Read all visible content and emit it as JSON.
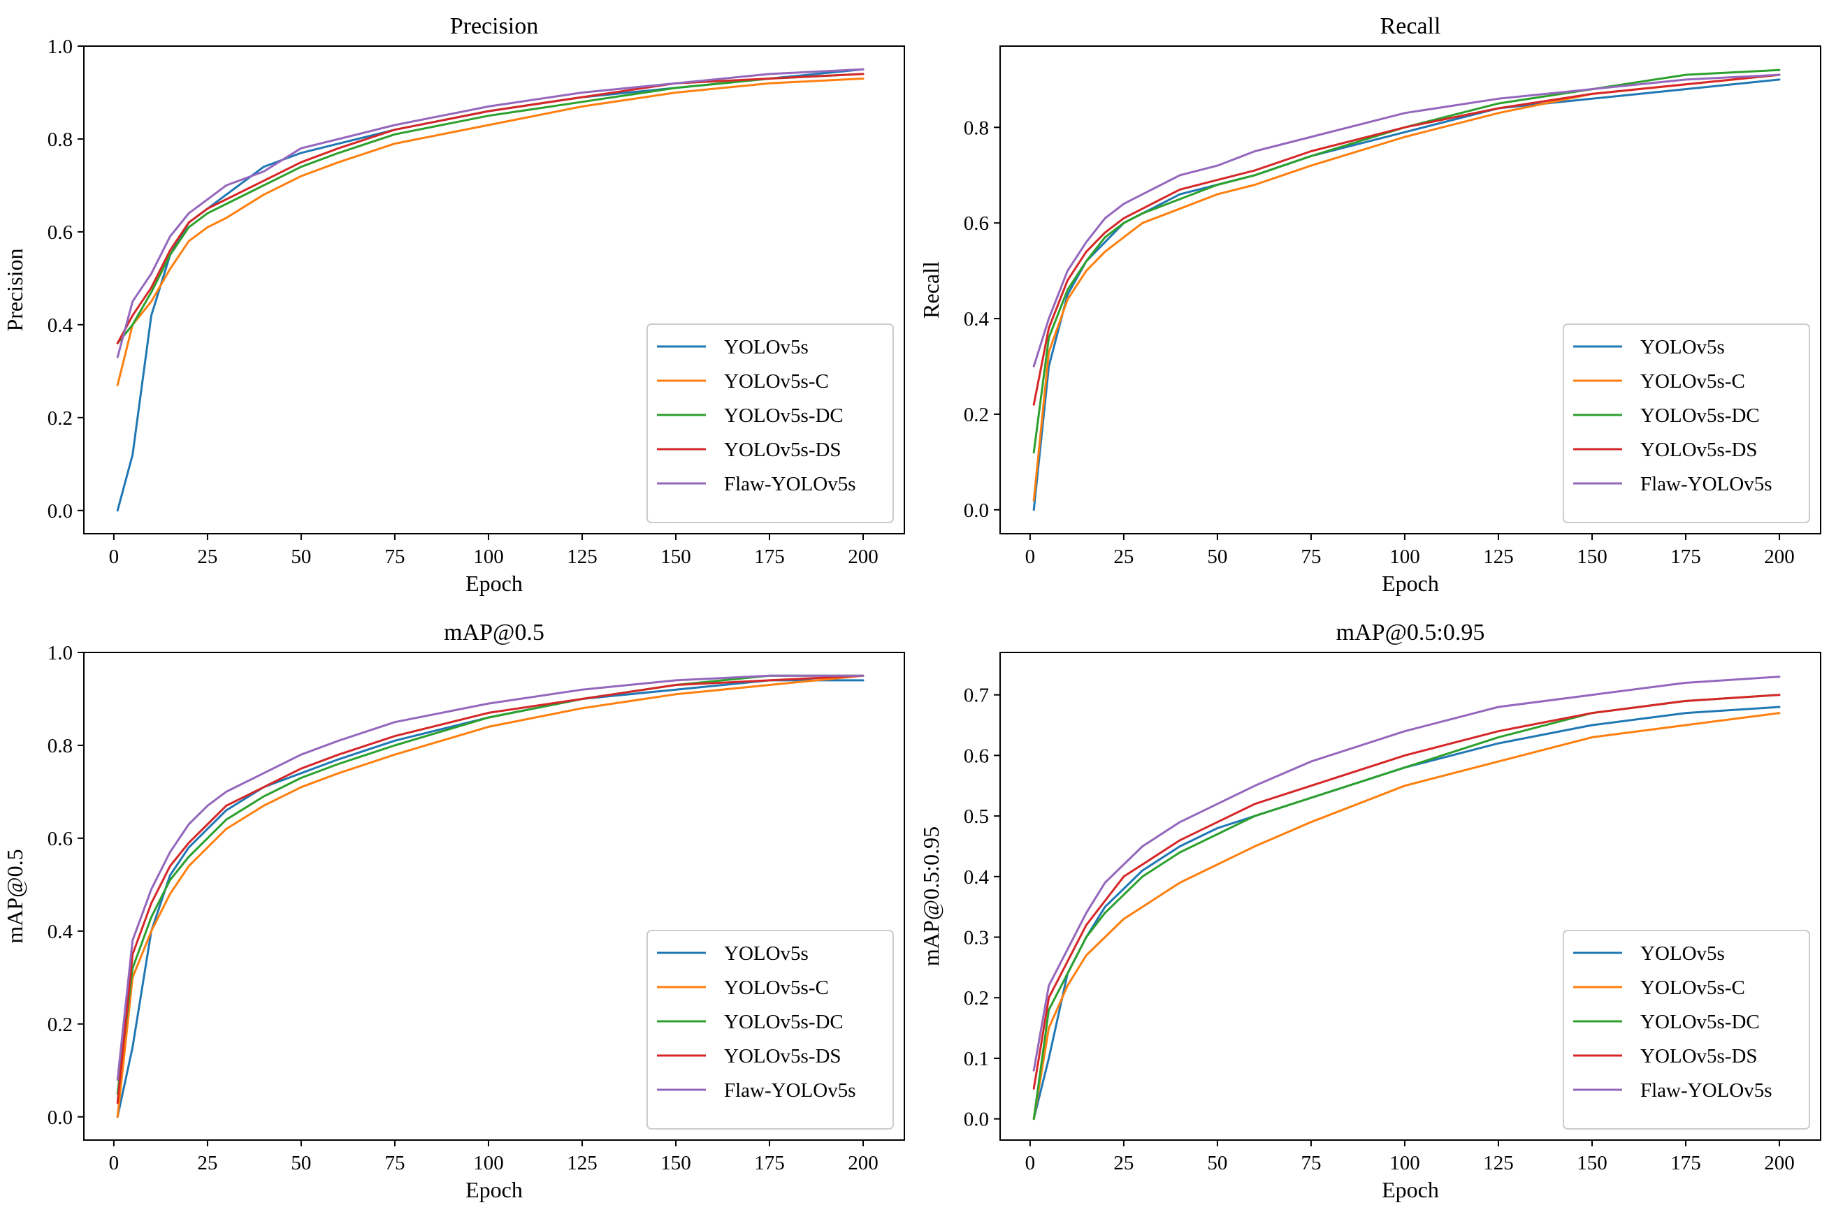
{
  "chart_data": [
    {
      "type": "line",
      "title": "Precision",
      "xlabel": "Epoch",
      "ylabel": "Precision",
      "xlim": [
        -8,
        211
      ],
      "ylim": [
        -0.05,
        1.0
      ],
      "xticks": [
        0,
        25,
        50,
        75,
        100,
        125,
        150,
        175,
        200
      ],
      "yticks": [
        0.0,
        0.2,
        0.4,
        0.6,
        0.8,
        1.0
      ],
      "ytick_labels": [
        "0.0",
        "0.2",
        "0.4",
        "0.6",
        "0.8",
        "1.0"
      ],
      "grid": false,
      "legend_position": "lower-right",
      "x": [
        1,
        5,
        10,
        15,
        20,
        25,
        30,
        40,
        50,
        60,
        75,
        100,
        125,
        150,
        175,
        200
      ],
      "series": [
        {
          "name": "YOLOv5s",
          "color": "#1f77b4",
          "values": [
            0.0,
            0.12,
            0.42,
            0.55,
            0.62,
            0.65,
            0.68,
            0.74,
            0.77,
            0.79,
            0.82,
            0.86,
            0.89,
            0.91,
            0.93,
            0.95
          ]
        },
        {
          "name": "YOLOv5s-C",
          "color": "#ff7f0e",
          "values": [
            0.27,
            0.4,
            0.45,
            0.52,
            0.58,
            0.61,
            0.63,
            0.68,
            0.72,
            0.75,
            0.79,
            0.83,
            0.87,
            0.9,
            0.92,
            0.93
          ]
        },
        {
          "name": "YOLOv5s-DC",
          "color": "#2ca02c",
          "values": [
            0.36,
            0.4,
            0.47,
            0.55,
            0.61,
            0.64,
            0.66,
            0.7,
            0.74,
            0.77,
            0.81,
            0.85,
            0.88,
            0.91,
            0.93,
            0.94
          ]
        },
        {
          "name": "YOLOv5s-DS",
          "color": "#d62728",
          "values": [
            0.36,
            0.42,
            0.48,
            0.56,
            0.62,
            0.65,
            0.67,
            0.71,
            0.75,
            0.78,
            0.82,
            0.86,
            0.89,
            0.92,
            0.93,
            0.94
          ]
        },
        {
          "name": "Flaw-YOLOv5s",
          "color": "#9467bd",
          "values": [
            0.33,
            0.45,
            0.51,
            0.59,
            0.64,
            0.67,
            0.7,
            0.73,
            0.78,
            0.8,
            0.83,
            0.87,
            0.9,
            0.92,
            0.94,
            0.95
          ]
        }
      ]
    },
    {
      "type": "line",
      "title": "Recall",
      "xlabel": "Epoch",
      "ylabel": "Recall",
      "xlim": [
        -8,
        211
      ],
      "ylim": [
        -0.05,
        0.97
      ],
      "xticks": [
        0,
        25,
        50,
        75,
        100,
        125,
        150,
        175,
        200
      ],
      "yticks": [
        0.0,
        0.2,
        0.4,
        0.6,
        0.8
      ],
      "ytick_labels": [
        "0.0",
        "0.2",
        "0.4",
        "0.6",
        "0.8"
      ],
      "grid": false,
      "legend_position": "lower-right",
      "x": [
        1,
        5,
        10,
        15,
        20,
        25,
        30,
        40,
        50,
        60,
        75,
        100,
        125,
        150,
        175,
        200
      ],
      "series": [
        {
          "name": "YOLOv5s",
          "color": "#1f77b4",
          "values": [
            0.0,
            0.3,
            0.45,
            0.52,
            0.56,
            0.6,
            0.62,
            0.66,
            0.68,
            0.7,
            0.74,
            0.79,
            0.84,
            0.86,
            0.88,
            0.9
          ]
        },
        {
          "name": "YOLOv5s-C",
          "color": "#ff7f0e",
          "values": [
            0.02,
            0.33,
            0.44,
            0.5,
            0.54,
            0.57,
            0.6,
            0.63,
            0.66,
            0.68,
            0.72,
            0.78,
            0.83,
            0.87,
            0.89,
            0.91
          ]
        },
        {
          "name": "YOLOv5s-DC",
          "color": "#2ca02c",
          "values": [
            0.12,
            0.36,
            0.46,
            0.52,
            0.57,
            0.6,
            0.62,
            0.65,
            0.68,
            0.7,
            0.74,
            0.8,
            0.85,
            0.88,
            0.91,
            0.92
          ]
        },
        {
          "name": "YOLOv5s-DS",
          "color": "#d62728",
          "values": [
            0.22,
            0.38,
            0.48,
            0.54,
            0.58,
            0.61,
            0.63,
            0.67,
            0.69,
            0.71,
            0.75,
            0.8,
            0.84,
            0.87,
            0.89,
            0.91
          ]
        },
        {
          "name": "Flaw-YOLOv5s",
          "color": "#9467bd",
          "values": [
            0.3,
            0.4,
            0.5,
            0.56,
            0.61,
            0.64,
            0.66,
            0.7,
            0.72,
            0.75,
            0.78,
            0.83,
            0.86,
            0.88,
            0.9,
            0.91
          ]
        }
      ]
    },
    {
      "type": "line",
      "title": "mAP@0.5",
      "xlabel": "Epoch",
      "ylabel": "mAP@0.5",
      "xlim": [
        -8,
        211
      ],
      "ylim": [
        -0.05,
        1.0
      ],
      "xticks": [
        0,
        25,
        50,
        75,
        100,
        125,
        150,
        175,
        200
      ],
      "yticks": [
        0.0,
        0.2,
        0.4,
        0.6,
        0.8,
        1.0
      ],
      "ytick_labels": [
        "0.0",
        "0.2",
        "0.4",
        "0.6",
        "0.8",
        "1.0"
      ],
      "grid": false,
      "legend_position": "lower-right",
      "x": [
        1,
        5,
        10,
        15,
        20,
        25,
        30,
        40,
        50,
        60,
        75,
        100,
        125,
        150,
        175,
        200
      ],
      "series": [
        {
          "name": "YOLOv5s",
          "color": "#1f77b4",
          "values": [
            0.0,
            0.15,
            0.4,
            0.52,
            0.58,
            0.62,
            0.66,
            0.71,
            0.74,
            0.77,
            0.81,
            0.86,
            0.9,
            0.92,
            0.94,
            0.94
          ]
        },
        {
          "name": "YOLOv5s-C",
          "color": "#ff7f0e",
          "values": [
            0.0,
            0.3,
            0.4,
            0.48,
            0.54,
            0.58,
            0.62,
            0.67,
            0.71,
            0.74,
            0.78,
            0.84,
            0.88,
            0.91,
            0.93,
            0.95
          ]
        },
        {
          "name": "YOLOv5s-DC",
          "color": "#2ca02c",
          "values": [
            0.05,
            0.32,
            0.43,
            0.51,
            0.56,
            0.6,
            0.64,
            0.69,
            0.73,
            0.76,
            0.8,
            0.86,
            0.9,
            0.93,
            0.95,
            0.95
          ]
        },
        {
          "name": "YOLOv5s-DS",
          "color": "#d62728",
          "values": [
            0.03,
            0.35,
            0.46,
            0.54,
            0.59,
            0.63,
            0.67,
            0.71,
            0.75,
            0.78,
            0.82,
            0.87,
            0.9,
            0.93,
            0.94,
            0.95
          ]
        },
        {
          "name": "Flaw-YOLOv5s",
          "color": "#9467bd",
          "values": [
            0.08,
            0.38,
            0.49,
            0.57,
            0.63,
            0.67,
            0.7,
            0.74,
            0.78,
            0.81,
            0.85,
            0.89,
            0.92,
            0.94,
            0.95,
            0.95
          ]
        }
      ]
    },
    {
      "type": "line",
      "title": "mAP@0.5:0.95",
      "xlabel": "Epoch",
      "ylabel": "mAP@0.5:0.95",
      "xlim": [
        -8,
        211
      ],
      "ylim": [
        -0.035,
        0.77
      ],
      "xticks": [
        0,
        25,
        50,
        75,
        100,
        125,
        150,
        175,
        200
      ],
      "yticks": [
        0.0,
        0.1,
        0.2,
        0.3,
        0.4,
        0.5,
        0.6,
        0.7
      ],
      "ytick_labels": [
        "0.0",
        "0.1",
        "0.2",
        "0.3",
        "0.4",
        "0.5",
        "0.6",
        "0.7"
      ],
      "grid": false,
      "legend_position": "lower-right",
      "x": [
        1,
        5,
        10,
        15,
        20,
        25,
        30,
        40,
        50,
        60,
        75,
        100,
        125,
        150,
        175,
        200
      ],
      "series": [
        {
          "name": "YOLOv5s",
          "color": "#1f77b4",
          "values": [
            0.0,
            0.1,
            0.24,
            0.3,
            0.35,
            0.38,
            0.41,
            0.45,
            0.48,
            0.5,
            0.53,
            0.58,
            0.62,
            0.65,
            0.67,
            0.68
          ]
        },
        {
          "name": "YOLOv5s-C",
          "color": "#ff7f0e",
          "values": [
            0.0,
            0.15,
            0.22,
            0.27,
            0.3,
            0.33,
            0.35,
            0.39,
            0.42,
            0.45,
            0.49,
            0.55,
            0.59,
            0.63,
            0.65,
            0.67
          ]
        },
        {
          "name": "YOLOv5s-DC",
          "color": "#2ca02c",
          "values": [
            0.0,
            0.18,
            0.24,
            0.3,
            0.34,
            0.37,
            0.4,
            0.44,
            0.47,
            0.5,
            0.53,
            0.58,
            0.63,
            0.67,
            0.69,
            0.7
          ]
        },
        {
          "name": "YOLOv5s-DS",
          "color": "#d62728",
          "values": [
            0.05,
            0.2,
            0.26,
            0.32,
            0.36,
            0.4,
            0.42,
            0.46,
            0.49,
            0.52,
            0.55,
            0.6,
            0.64,
            0.67,
            0.69,
            0.7
          ]
        },
        {
          "name": "Flaw-YOLOv5s",
          "color": "#9467bd",
          "values": [
            0.08,
            0.22,
            0.28,
            0.34,
            0.39,
            0.42,
            0.45,
            0.49,
            0.52,
            0.55,
            0.59,
            0.64,
            0.68,
            0.7,
            0.72,
            0.73
          ]
        }
      ]
    }
  ]
}
